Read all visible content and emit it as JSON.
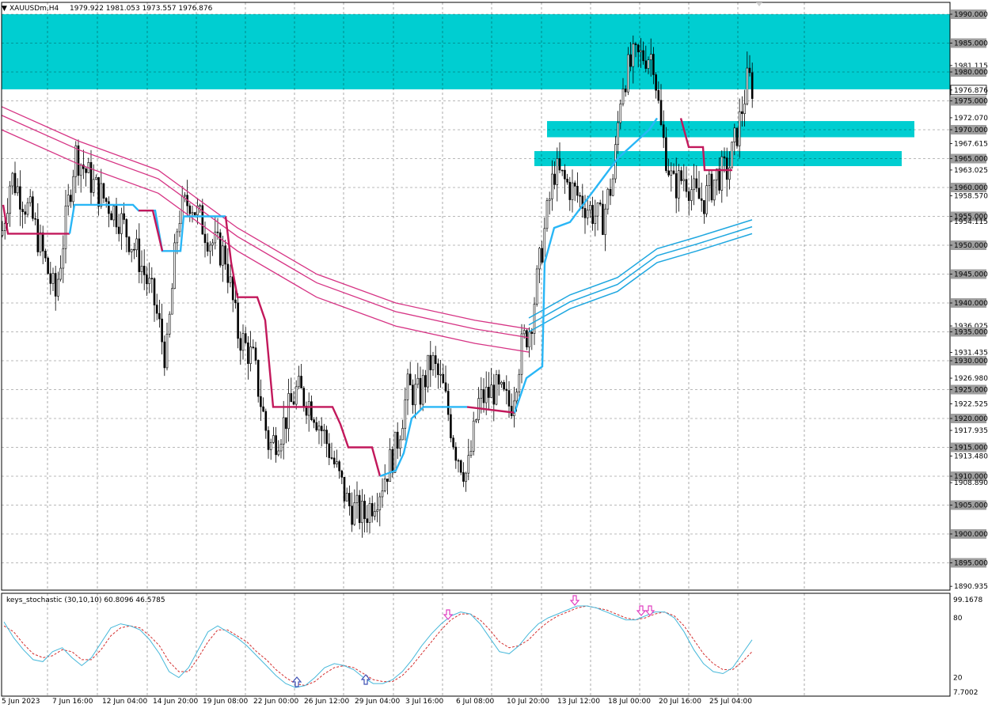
{
  "window": {
    "title": "XAUUSDm,H4",
    "ohlc": "1979.922 1981.053 1973.557 1976.876"
  },
  "indicator": {
    "label": "keys_stochastic (30,10,10) 60.8096 46.5785"
  },
  "colors": {
    "zone": "#00CED1",
    "bull_trend": "#29B6F6",
    "bear_trend": "#C2185B",
    "ma": "#D63384",
    "ma_up": "#1EA7E0",
    "stoch_main": "#46B8DA",
    "stoch_signal": "#D32F2F",
    "arrow_up": "#3F51B5",
    "arrow_down": "#E040C0",
    "grid": "#000000",
    "candle": "#000000"
  },
  "chart_data": {
    "type": "candlestick",
    "symbol": "XAUUSDm",
    "timeframe": "H4",
    "price_ticks": [
      "1990.000",
      "1985.000",
      "1981.115",
      "1980.000",
      "1976.876",
      "1975.000",
      "1972.070",
      "1970.000",
      "1967.615",
      "1965.000",
      "1963.025",
      "1960.000",
      "1958.570",
      "1955.000",
      "1954.115",
      "1950.000",
      "1945.000",
      "1940.000",
      "1936.025",
      "1935.000",
      "1931.435",
      "1930.000",
      "1926.980",
      "1925.000",
      "1922.525",
      "1920.000",
      "1917.935",
      "1915.000",
      "1913.480",
      "1910.000",
      "1908.890",
      "1905.000",
      "1900.000",
      "1895.000",
      "1890.935"
    ],
    "boxed_levels": [
      "1990.000",
      "1985.000",
      "1980.000",
      "1976.876",
      "1975.000",
      "1970.000",
      "1965.000",
      "1960.000",
      "1955.000",
      "1950.000",
      "1945.000",
      "1940.000",
      "1935.000",
      "1930.000",
      "1925.000",
      "1920.000",
      "1915.000",
      "1910.000",
      "1905.000",
      "1900.000",
      "1895.000"
    ],
    "ylim": [
      1890.935,
      1991.5
    ],
    "time_labels": [
      "5 Jun 2023",
      "7 Jun 16:00",
      "12 Jun 04:00",
      "14 Jun 20:00",
      "19 Jun 08:00",
      "22 Jun 00:00",
      "26 Jun 12:00",
      "29 Jun 04:00",
      "3 Jul 16:00",
      "6 Jul 08:00",
      "10 Jul 20:00",
      "13 Jul 12:00",
      "18 Jul 00:00",
      "20 Jul 16:00",
      "25 Jul 04:00"
    ],
    "last_price": 1976.876,
    "zones": [
      {
        "from": 1977.0,
        "to": 1990.0
      },
      {
        "from": 1968.7,
        "to": 1971.5
      },
      {
        "from": 1963.7,
        "to": 1966.3
      }
    ],
    "stochastic": {
      "ticks": [
        "99.1678",
        "80",
        "20",
        "7.7002"
      ],
      "ylim": [
        7.7002,
        99.1678
      ],
      "main": [
        76,
        60,
        48,
        38,
        36,
        46,
        50,
        40,
        32,
        40,
        55,
        70,
        74,
        72,
        68,
        58,
        44,
        26,
        20,
        30,
        48,
        66,
        72,
        66,
        60,
        52,
        42,
        32,
        22,
        14,
        10,
        12,
        20,
        30,
        34,
        32,
        28,
        20,
        14,
        14,
        18,
        26,
        38,
        52,
        64,
        74,
        82,
        86,
        84,
        74,
        60,
        46,
        44,
        52,
        64,
        74,
        80,
        84,
        88,
        92,
        92,
        90,
        86,
        82,
        78,
        78,
        82,
        86,
        86,
        80,
        66,
        48,
        34,
        26,
        24,
        30,
        44,
        58
      ],
      "signal": [
        72,
        66,
        54,
        44,
        40,
        42,
        48,
        46,
        38,
        38,
        48,
        62,
        70,
        72,
        70,
        62,
        52,
        36,
        26,
        26,
        40,
        56,
        68,
        68,
        62,
        56,
        46,
        38,
        28,
        20,
        14,
        12,
        16,
        24,
        30,
        32,
        30,
        24,
        18,
        16,
        16,
        22,
        32,
        44,
        56,
        68,
        78,
        84,
        84,
        78,
        68,
        56,
        50,
        52,
        58,
        68,
        76,
        82,
        86,
        90,
        92,
        90,
        88,
        84,
        80,
        78,
        80,
        84,
        86,
        82,
        72,
        58,
        44,
        34,
        28,
        28,
        36,
        46
      ],
      "up_arrows": [
        "22 Jun",
        "29 Jun"
      ],
      "down_arrows": [
        "6 Jul",
        "13 Jul",
        "18 Jul",
        "18 Jul"
      ]
    }
  }
}
